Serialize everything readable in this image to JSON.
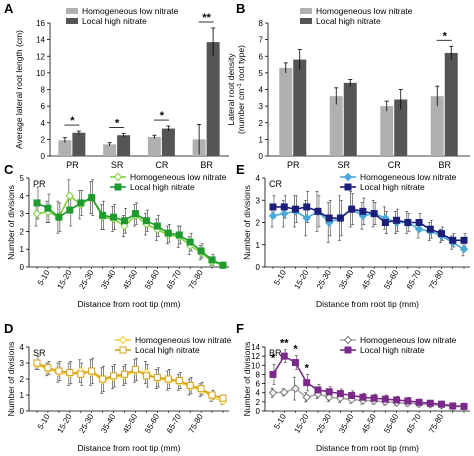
{
  "chart_data": [
    {
      "panel": "A",
      "type": "bar",
      "ylabel": "Average lateral root length (cm)",
      "ylim": [
        0,
        16
      ],
      "yticks": [
        0,
        2,
        4,
        6,
        8,
        10,
        12,
        14,
        16
      ],
      "categories": [
        "PR",
        "SR",
        "CR",
        "BR"
      ],
      "series": [
        {
          "name": "Homogeneous low nitrate",
          "color": "#b0b0b0",
          "values": [
            1.9,
            1.4,
            2.3,
            2.0
          ],
          "errors": [
            0.3,
            0.2,
            0.2,
            1.8
          ]
        },
        {
          "name": "Local high nitrate",
          "color": "#555555",
          "values": [
            2.8,
            2.5,
            3.3,
            13.7
          ],
          "errors": [
            0.2,
            0.2,
            0.3,
            1.7
          ]
        }
      ],
      "annotations": [
        {
          "category": "PR",
          "text": "*"
        },
        {
          "category": "SR",
          "text": "*"
        },
        {
          "category": "CR",
          "text": "*"
        },
        {
          "category": "BR",
          "text": "**"
        }
      ]
    },
    {
      "panel": "B",
      "type": "bar",
      "ylabel_line1": "Lateral root density",
      "ylabel_line2": "(number cm",
      "ylabel_sup": "-1",
      "ylabel_line2_rest": " root type)",
      "ylim": [
        0,
        8
      ],
      "yticks": [
        0,
        1,
        2,
        3,
        4,
        5,
        6,
        7,
        8
      ],
      "categories": [
        "PR",
        "SR",
        "CR",
        "BR"
      ],
      "series": [
        {
          "name": "Homogeneous low nitrate",
          "color": "#b0b0b0",
          "values": [
            5.3,
            3.6,
            3.0,
            3.6
          ],
          "errors": [
            0.3,
            0.5,
            0.3,
            0.6
          ]
        },
        {
          "name": "Local high nitrate",
          "color": "#555555",
          "values": [
            5.8,
            4.4,
            3.4,
            6.2
          ],
          "errors": [
            0.6,
            0.2,
            0.6,
            0.4
          ]
        }
      ],
      "annotations": [
        {
          "category": "BR",
          "text": "*"
        }
      ]
    },
    {
      "panel": "C",
      "type": "line",
      "tag": "PR",
      "xlabel": "Distance from root tip (mm)",
      "ylabel": "Number of divisions",
      "ylim": [
        0,
        5
      ],
      "yticks": [
        0,
        1,
        2,
        3,
        4,
        5
      ],
      "xticks": [
        "5-10",
        "15-20",
        "25-30",
        "35-40",
        "45-50",
        "55-60",
        "65-70",
        "75-80"
      ],
      "series": [
        {
          "name": "Homogeneous low nitrate",
          "color": "#7fd23c",
          "marker": "diamond",
          "hollow": true,
          "values": [
            3.0,
            3.1,
            2.8,
            4.0,
            3.5,
            3.9,
            2.8,
            2.7,
            2.3,
            2.9,
            2.4,
            2.1,
            1.8,
            1.7,
            1.2,
            0.8,
            0.3,
            0.1
          ],
          "errors": [
            0.7,
            0.6,
            0.9,
            0.9,
            0.8,
            0.9,
            0.7,
            0.7,
            0.6,
            0.6,
            0.6,
            0.6,
            0.5,
            0.6,
            0.5,
            0.4,
            0.2,
            0.1
          ]
        },
        {
          "name": "Local high nitrate",
          "color": "#1f9a2e",
          "marker": "square",
          "hollow": false,
          "values": [
            3.6,
            3.3,
            2.8,
            3.2,
            3.6,
            3.9,
            2.9,
            2.8,
            2.6,
            3.0,
            2.6,
            2.3,
            1.9,
            1.8,
            1.4,
            0.9,
            0.4,
            0.1
          ],
          "errors": [
            0.9,
            0.8,
            0.8,
            0.9,
            0.7,
            1.0,
            0.8,
            0.7,
            0.7,
            0.6,
            0.6,
            0.6,
            0.5,
            0.5,
            0.5,
            0.4,
            0.3,
            0.1
          ]
        }
      ]
    },
    {
      "panel": "E",
      "type": "line",
      "tag": "CR",
      "xlabel": "Distance from root tip (mm)",
      "ylabel": "Number of divisions",
      "ylim": [
        0,
        4
      ],
      "yticks": [
        0,
        1,
        2,
        3,
        4
      ],
      "xticks": [
        "5-10",
        "15-20",
        "25-30",
        "35-40",
        "45-50",
        "55-60",
        "65-70",
        "75-80"
      ],
      "series": [
        {
          "name": "Homogeneous low nitrate",
          "color": "#4aa8d8",
          "marker": "diamond",
          "hollow": false,
          "values": [
            2.3,
            2.4,
            2.5,
            2.2,
            2.5,
            2.0,
            2.2,
            2.6,
            2.3,
            2.4,
            2.2,
            2.0,
            2.0,
            1.7,
            1.6,
            1.4,
            1.1,
            0.8
          ],
          "errors": [
            0.5,
            0.6,
            0.7,
            0.8,
            0.9,
            0.9,
            1.0,
            0.8,
            0.6,
            0.6,
            0.5,
            0.5,
            0.5,
            0.4,
            0.4,
            0.3,
            0.3,
            0.3
          ]
        },
        {
          "name": "Local high nitrate",
          "color": "#1c1f7a",
          "marker": "square",
          "hollow": false,
          "values": [
            2.7,
            2.7,
            2.6,
            2.7,
            2.5,
            2.2,
            2.2,
            2.6,
            2.5,
            2.4,
            2.0,
            2.1,
            2.0,
            2.0,
            1.7,
            1.5,
            1.2,
            1.2
          ],
          "errors": [
            0.5,
            0.5,
            0.6,
            0.7,
            0.7,
            0.8,
            0.8,
            0.7,
            0.6,
            0.5,
            0.5,
            0.5,
            0.4,
            0.4,
            0.4,
            0.3,
            0.3,
            0.3
          ]
        }
      ]
    },
    {
      "panel": "D",
      "type": "line",
      "tag": "SR",
      "xlabel": "Distance from root tip (mm)",
      "ylabel": "Number of divisions",
      "ylim": [
        0,
        4
      ],
      "yticks": [
        0,
        1,
        2,
        3,
        4
      ],
      "xticks": [
        "5-10",
        "15-20",
        "25-30",
        "35-40",
        "45-50",
        "55-60",
        "65-70",
        "75-80"
      ],
      "series": [
        {
          "name": "Homogeneous low nitrate",
          "color": "#f0d23a",
          "marker": "diamond",
          "hollow": true,
          "values": [
            2.9,
            2.6,
            2.4,
            2.3,
            2.5,
            2.4,
            1.9,
            2.1,
            2.2,
            2.5,
            2.4,
            2.0,
            1.9,
            1.8,
            1.5,
            1.3,
            0.9,
            0.6
          ],
          "errors": [
            0.3,
            0.4,
            0.6,
            0.7,
            0.7,
            0.8,
            0.8,
            0.7,
            0.6,
            0.7,
            0.7,
            0.6,
            0.6,
            0.5,
            0.5,
            0.4,
            0.3,
            0.2
          ]
        },
        {
          "name": "Local high nitrate",
          "color": "#d4a017",
          "marker": "square",
          "hollow": true,
          "values": [
            3.0,
            2.7,
            2.5,
            2.4,
            2.3,
            2.5,
            2.0,
            2.2,
            2.3,
            2.6,
            2.2,
            2.1,
            2.0,
            1.9,
            1.6,
            1.4,
            1.0,
            0.8
          ],
          "errors": [
            0.4,
            0.4,
            0.6,
            0.7,
            0.7,
            0.8,
            0.8,
            0.7,
            0.6,
            0.7,
            0.7,
            0.6,
            0.6,
            0.5,
            0.5,
            0.4,
            0.3,
            0.2
          ]
        }
      ]
    },
    {
      "panel": "F",
      "type": "line",
      "tag": "BR",
      "xlabel": "Distance from root tip (mm)",
      "ylabel": "Number of divisions",
      "ylim": [
        0,
        14
      ],
      "yticks": [
        0,
        2,
        4,
        6,
        8,
        10,
        12,
        14
      ],
      "xticks": [
        "5-10",
        "15-20",
        "25-30",
        "35-40",
        "45-50",
        "55-60",
        "65-70",
        "75-80"
      ],
      "series": [
        {
          "name": "Homogeneous low nitrate",
          "color": "#a9a9a9",
          "marker": "diamond",
          "hollow": true,
          "values": [
            4.0,
            4.1,
            4.9,
            3.0,
            3.7,
            3.0,
            2.8,
            2.5,
            2.3,
            2.2,
            2.0,
            1.8,
            1.7,
            1.5,
            1.4,
            1.2,
            1.0,
            1.0
          ],
          "errors": [
            1.0,
            0.8,
            2.5,
            1.0,
            1.0,
            1.0,
            0.9,
            0.8,
            0.8,
            0.7,
            0.7,
            0.6,
            0.6,
            0.5,
            0.5,
            0.4,
            0.3,
            0.2
          ]
        },
        {
          "name": "Local high nitrate",
          "color": "#7b2a8a",
          "marker": "square",
          "hollow": false,
          "values": [
            8.0,
            12.0,
            10.6,
            6.2,
            4.6,
            4.2,
            3.8,
            3.4,
            3.0,
            2.8,
            2.6,
            2.4,
            2.2,
            1.9,
            1.7,
            1.5,
            1.1,
            1.0
          ],
          "errors": [
            2.2,
            1.4,
            1.5,
            1.8,
            1.2,
            1.1,
            1.0,
            1.0,
            0.9,
            0.9,
            0.9,
            0.8,
            0.8,
            0.7,
            0.6,
            0.5,
            0.4,
            0.3
          ]
        }
      ],
      "annotations": [
        {
          "index": 0,
          "text": "*"
        },
        {
          "index": 1,
          "text": "**"
        },
        {
          "index": 2,
          "text": "*"
        },
        {
          "index": 3,
          "text": "*"
        }
      ]
    }
  ]
}
